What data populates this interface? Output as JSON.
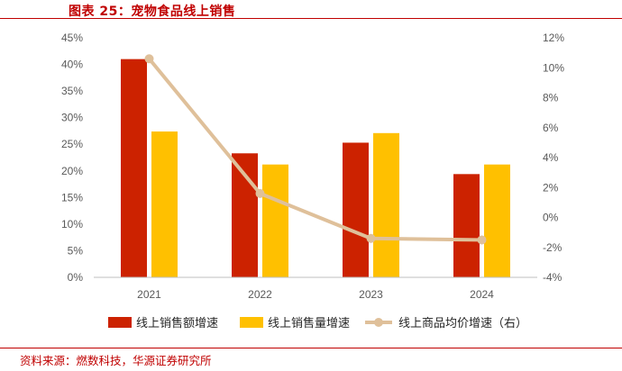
{
  "figure": {
    "title": "图表 25：宠物食品线上销售",
    "source": "资料来源：燃数科技，华源证券研究所"
  },
  "colors": {
    "accent": "#c00000",
    "series1": "#cc2200",
    "series2": "#ffc000",
    "series3": "#dfc09a"
  },
  "chart_data": {
    "type": "bar",
    "categories": [
      "2021",
      "2022",
      "2023",
      "2024"
    ],
    "series": [
      {
        "name": "线上销售额增速",
        "type": "bar",
        "axis": "left",
        "values": [
          41.0,
          23.3,
          25.3,
          19.4
        ]
      },
      {
        "name": "线上销售量增速",
        "type": "bar",
        "axis": "left",
        "values": [
          27.4,
          21.2,
          27.1,
          21.2
        ]
      },
      {
        "name": "线上商品均价增速（右）",
        "type": "line",
        "axis": "right",
        "values": [
          10.6,
          1.6,
          -1.4,
          -1.5
        ]
      }
    ],
    "y_left": {
      "min": 0,
      "max": 45,
      "step": 5,
      "tick_labels": [
        "0%",
        "5%",
        "10%",
        "15%",
        "20%",
        "25%",
        "30%",
        "35%",
        "40%",
        "45%"
      ]
    },
    "y_right": {
      "min": -4,
      "max": 12,
      "step": 2,
      "tick_labels": [
        "-4%",
        "-2%",
        "0%",
        "2%",
        "4%",
        "6%",
        "8%",
        "10%",
        "12%"
      ]
    },
    "grid": false,
    "legend_position": "bottom"
  }
}
